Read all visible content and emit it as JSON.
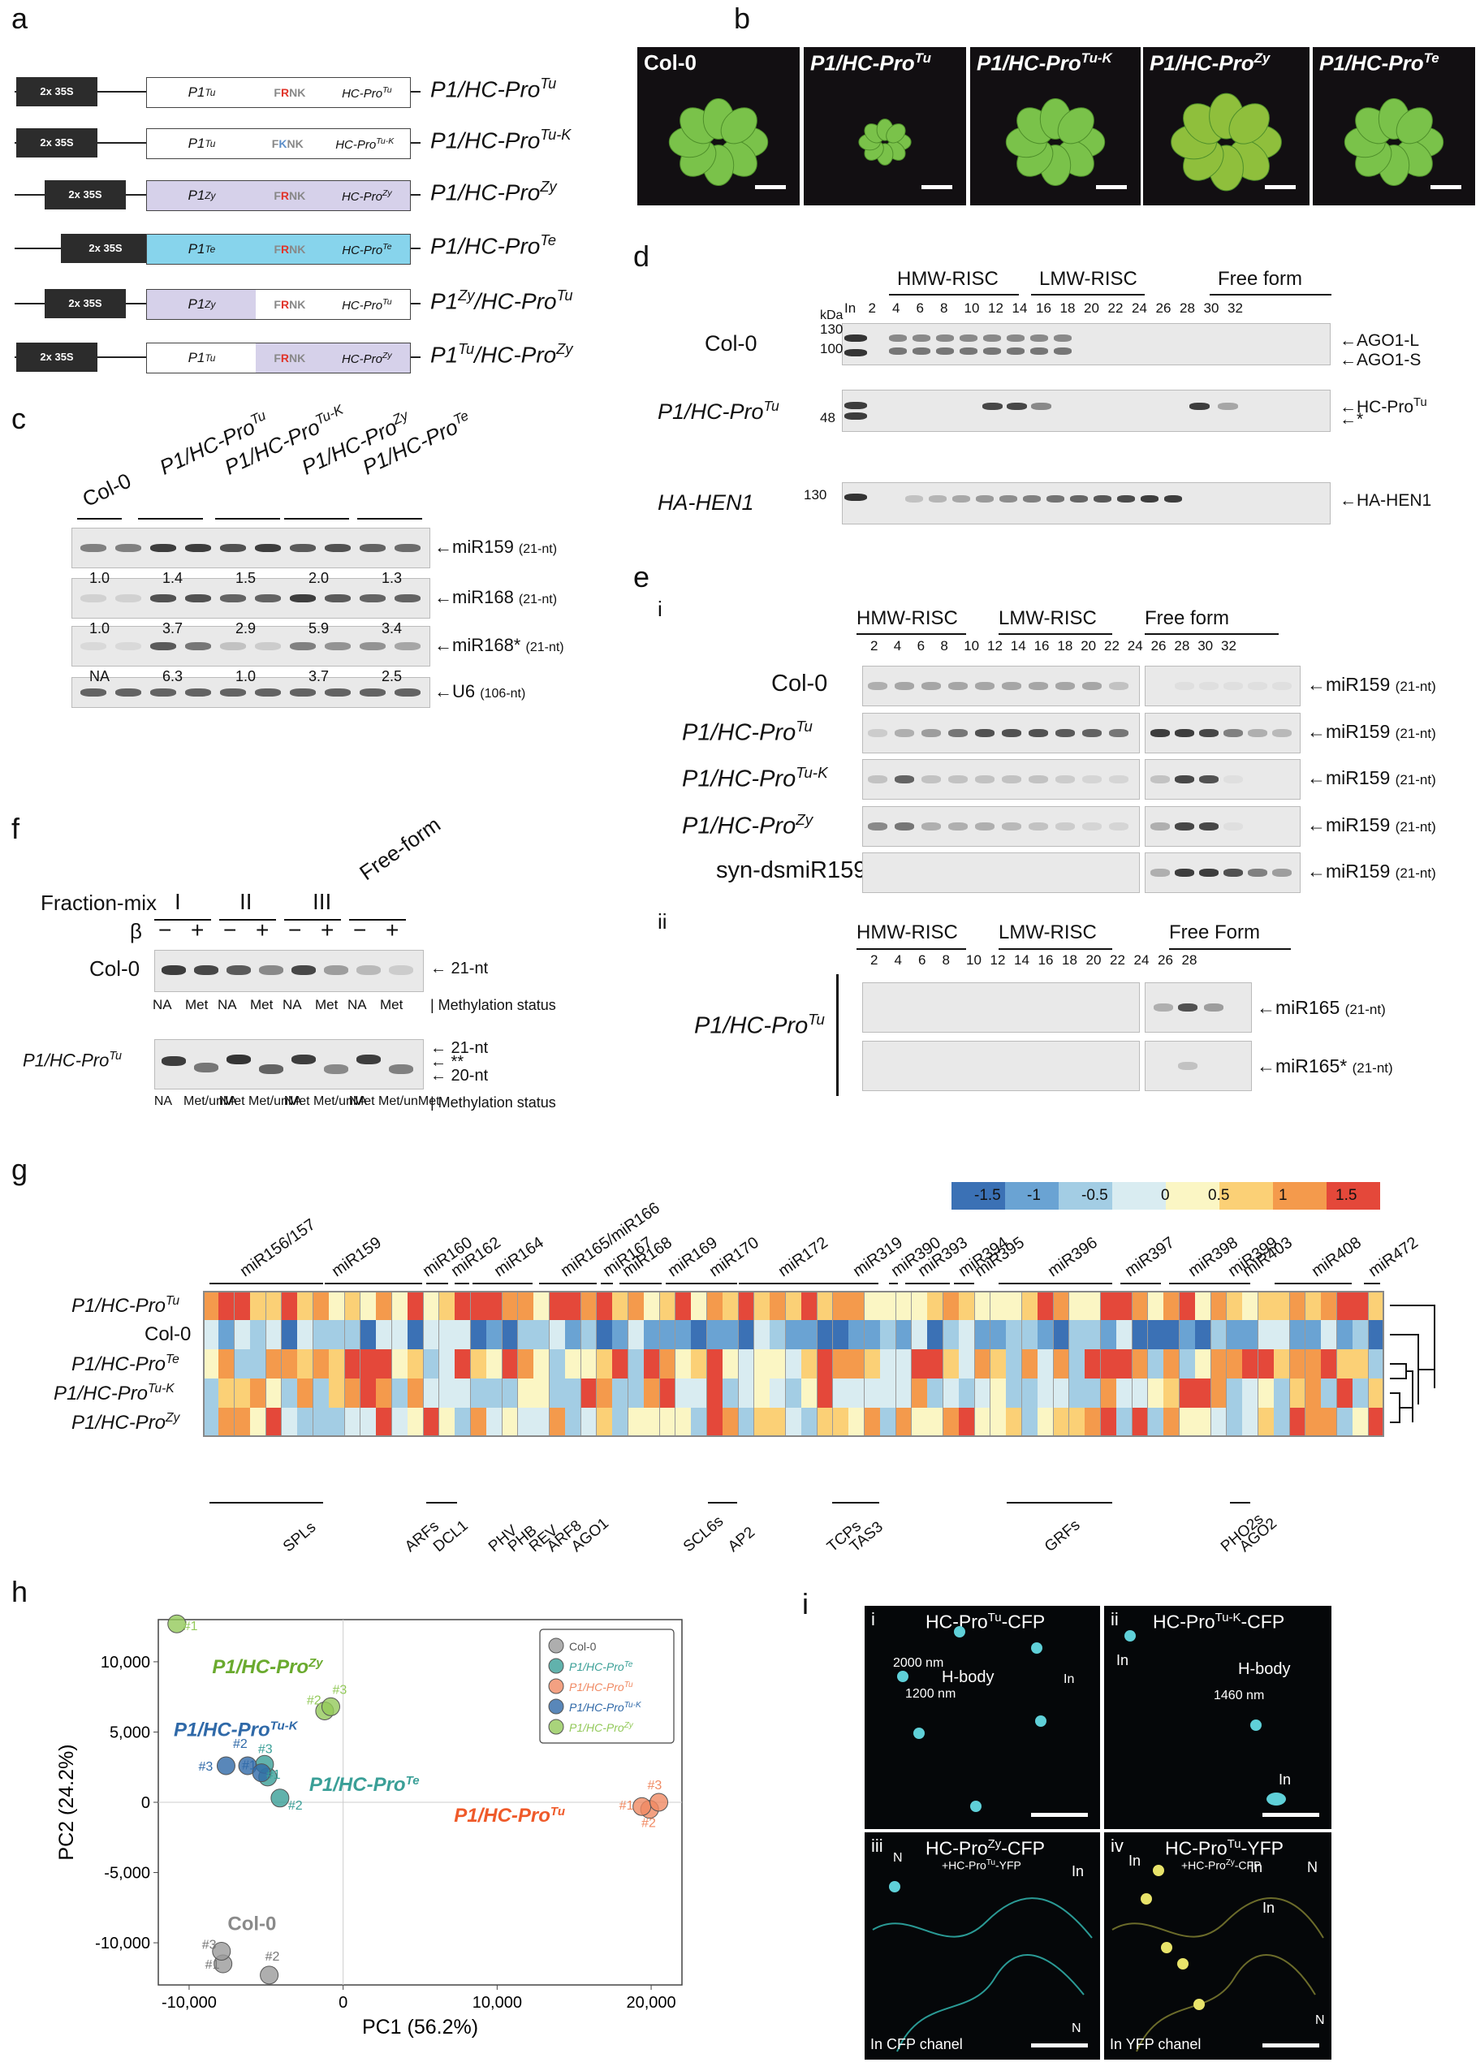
{
  "panels": {
    "a": "a",
    "b": "b",
    "c": "c",
    "d": "d",
    "e": "e",
    "f": "f",
    "g": "g",
    "h": "h",
    "i": "i"
  },
  "a": {
    "promoter": "2x 35S",
    "constructs": [
      {
        "p1": "P1Tu",
        "motif": "FRNK",
        "hc": "HC-ProTu",
        "name": "P1/HC-ProTu"
      },
      {
        "p1": "P1Tu",
        "motif": "FKNK",
        "hc": "HC-ProTu-K",
        "name": "P1/HC-ProTu-K"
      },
      {
        "p1": "P1Zy",
        "motif": "FRNK",
        "hc": "HC-ProZy",
        "name": "P1/HC-ProZy"
      },
      {
        "p1": "P1Te",
        "motif": "FRNK",
        "hc": "HC-ProTe",
        "name": "P1/HC-ProTe"
      },
      {
        "p1": "P1Zy",
        "motif": "FRNK",
        "hc": "HC-ProTu",
        "name": "P1Zy/HC-ProTu"
      },
      {
        "p1": "P1Tu",
        "motif": "FRNK",
        "hc": "HC-ProZy",
        "name": "P1Tu/HC-ProZy"
      }
    ]
  },
  "b": {
    "photos": [
      "Col-0",
      "P1/HC-ProTu",
      "P1/HC-ProTu-K",
      "P1/HC-ProZy",
      "P1/HC-ProTe"
    ]
  },
  "c": {
    "lanes": [
      "Col-0",
      "P1/HC-ProTu",
      "P1/HC-ProTu-K",
      "P1/HC-ProZy",
      "P1/HC-ProTe"
    ],
    "probes": [
      "miR159",
      "miR168",
      "miR168*",
      "U6"
    ],
    "sizes": [
      "(21-nt)",
      "(21-nt)",
      "(21-nt)",
      "(106-nt)"
    ],
    "quant": [
      [
        "1.0",
        "1.4",
        "1.5",
        "2.0",
        "1.3"
      ],
      [
        "1.0",
        "3.7",
        "2.9",
        "5.9",
        "3.4"
      ],
      [
        "NA",
        "6.3",
        "1.0",
        "3.7",
        "2.5"
      ]
    ]
  },
  "d": {
    "groups": [
      "HMW-RISC",
      "LMW-RISC",
      "Free form"
    ],
    "kda": "kDa",
    "fractions": [
      "In",
      "2",
      "4",
      "6",
      "8",
      "10",
      "12",
      "14",
      "16",
      "18",
      "20",
      "22",
      "24",
      "26",
      "28",
      "30",
      "32"
    ],
    "rows": [
      "Col-0",
      "P1/HC-ProTu",
      "HA-HEN1"
    ],
    "markers": [
      "130",
      "100",
      "48",
      "130"
    ],
    "bands": [
      "AGO1-L",
      "AGO1-S",
      "HC-ProTu",
      "*",
      "HA-HEN1"
    ]
  },
  "e": {
    "sub_i": "i",
    "sub_ii": "ii",
    "groups": [
      "HMW-RISC",
      "LMW-RISC",
      "Free form"
    ],
    "groups_ii": [
      "HMW-RISC",
      "LMW-RISC",
      "Free Form"
    ],
    "fractions": [
      "2",
      "4",
      "6",
      "8",
      "10",
      "12",
      "14",
      "16",
      "18",
      "20",
      "22",
      "24",
      "26",
      "28",
      "30",
      "32"
    ],
    "fractions_ii": [
      "2",
      "4",
      "6",
      "8",
      "10",
      "12",
      "14",
      "16",
      "18",
      "20",
      "22",
      "24",
      "26",
      "28"
    ],
    "rows": [
      "Col-0",
      "P1/HC-ProTu",
      "P1/HC-ProTu-K",
      "P1/HC-ProZy",
      "syn-dsmiR159"
    ],
    "probe": "miR159",
    "size": "(21-nt)",
    "row_ii": "P1/HC-ProTu",
    "probes_ii": [
      "miR165",
      "miR165*"
    ]
  },
  "f": {
    "fraction_mix": "Fraction-mix",
    "mixes": [
      "I",
      "II",
      "III",
      "Free-form"
    ],
    "beta": "β",
    "signs": [
      "−",
      "+"
    ],
    "rows": [
      "Col-0",
      "P1/HC-ProTu"
    ],
    "status_col0": [
      "NA",
      "Met",
      "NA",
      "Met",
      "NA",
      "Met",
      "NA",
      "Met"
    ],
    "status_tu": [
      "NA",
      "Met/unMet",
      "NA",
      "Met/unMet",
      "NA",
      "Met/unMet",
      "NA",
      "Met/unMet"
    ],
    "methylation": "Methylation status",
    "nt21": "21-nt",
    "nt20": "20-nt",
    "star": "**"
  },
  "g": {
    "scale_labels": [
      "-1.5",
      "-1",
      "-0.5",
      "0",
      "0.5",
      "1",
      "1.5"
    ],
    "mirnas": [
      "miR156/157",
      "miR159",
      "miR160",
      "miR162",
      "miR164",
      "miR165/miR166",
      "miR167",
      "miR168",
      "miR169",
      "miR170",
      "miR172",
      "miR319",
      "miR390",
      "miR393",
      "miR394",
      "miR395",
      "miR396",
      "miR397",
      "miR398",
      "miR399",
      "miR403",
      "miR408",
      "miR472"
    ],
    "rows": [
      "P1/HC-ProTu",
      "Col-0",
      "P1/HC-ProTe",
      "P1/HC-ProTu-K",
      "P1/HC-ProZy"
    ],
    "targets": [
      "SPLs",
      "ARFs",
      "DCL1",
      "PHV",
      "PHB",
      "REV",
      "ARF8",
      "AGO1",
      "SCL6s",
      "AP2",
      "TCPs",
      "TAS3",
      "GRFs",
      "PHO2s",
      "AGO2"
    ]
  },
  "h": {
    "xlabel": "PC1 (56.2%)",
    "ylabel": "PC2 (24.2%)",
    "xticks": [
      "-10,000",
      "0",
      "10,000",
      "20,000"
    ],
    "yticks": [
      "10,000",
      "5,000",
      "0",
      "-5,000",
      "-10,000"
    ],
    "legend": [
      "Col-0",
      "P1/HC-ProTe",
      "P1/HC-ProTu",
      "P1/HC-ProTu-K",
      "P1/HC-ProZy"
    ],
    "group_labels": [
      "P1/HC-ProZy",
      "P1/HC-ProTu-K",
      "P1/HC-ProTe",
      "P1/HC-ProTu",
      "Col-0"
    ],
    "rep_labels": [
      "#1",
      "#2",
      "#3"
    ]
  },
  "chart_data": {
    "type": "scatter",
    "xlabel": "PC1 (56.2%)",
    "ylabel": "PC2 (24.2%)",
    "xlim": [
      -12000,
      22000
    ],
    "ylim": [
      -13000,
      13000
    ],
    "series": [
      {
        "name": "Col-0",
        "color": "#9a9a9a",
        "points": [
          [
            -7800,
            -11500
          ],
          [
            -4800,
            -12300
          ],
          [
            -7900,
            -10600
          ]
        ]
      },
      {
        "name": "P1/HC-ProTe",
        "color": "#3a9f97",
        "points": [
          [
            -4900,
            1800
          ],
          [
            -4100,
            300
          ],
          [
            -5100,
            2700
          ]
        ]
      },
      {
        "name": "P1/HC-ProTu",
        "color": "#f08a63",
        "points": [
          [
            19900,
            -500
          ],
          [
            19400,
            -300
          ],
          [
            20500,
            0
          ]
        ]
      },
      {
        "name": "P1/HC-ProTu-K",
        "color": "#2f69a8",
        "points": [
          [
            -6200,
            2600
          ],
          [
            -5300,
            2100
          ],
          [
            -7600,
            2600
          ]
        ]
      },
      {
        "name": "P1/HC-ProZy",
        "color": "#93c95a",
        "points": [
          [
            -10800,
            12700
          ],
          [
            -1200,
            6500
          ],
          [
            -800,
            6800
          ]
        ]
      }
    ],
    "xticks": [
      "-10,000",
      "0",
      "10,000",
      "20,000"
    ],
    "yticks": [
      "10,000",
      "5,000",
      "0",
      "-5,000",
      "-10,000"
    ],
    "grid": false,
    "legend": "top-right"
  },
  "i": {
    "tiles": [
      {
        "num": "i",
        "title": "HC-ProTu-CFP",
        "sub": ""
      },
      {
        "num": "ii",
        "title": "HC-ProTu-K-CFP",
        "sub": ""
      },
      {
        "num": "iii",
        "title": "HC-ProZy-CFP",
        "sub": "+HC-ProTu-YFP"
      },
      {
        "num": "iv",
        "title": "HC-ProTu-YFP",
        "sub": "+HC-ProZy-CFP"
      }
    ],
    "ann": [
      "2000 nm",
      "H-body",
      "1200 nm",
      "In",
      "H-body",
      "1460 nm",
      "In",
      "In",
      "N",
      "In",
      "N",
      "In",
      "In",
      "N",
      "In",
      "N"
    ],
    "channels": [
      "In CFP chanel",
      "In YFP chanel"
    ]
  }
}
